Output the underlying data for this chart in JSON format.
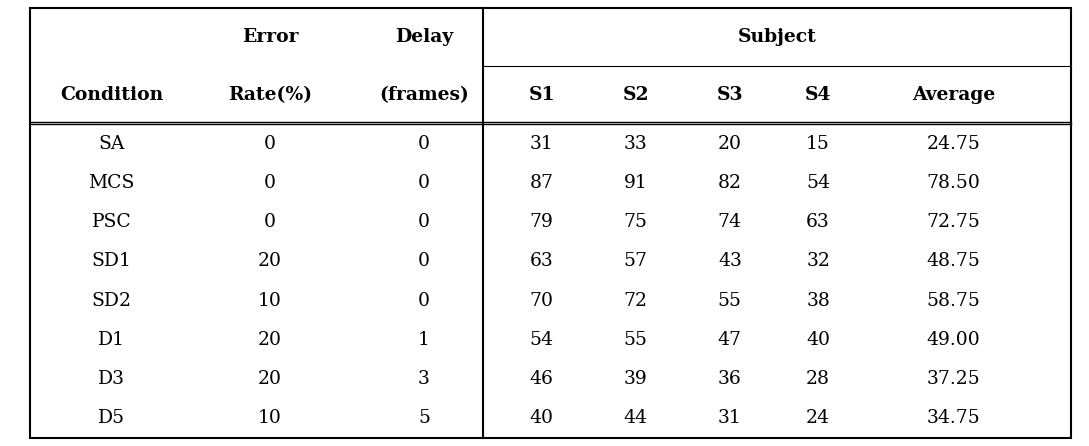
{
  "header_row1_texts": [
    "Error",
    "Delay",
    "Subject"
  ],
  "header_row2": [
    "Condition",
    "Rate(%)",
    "(frames)",
    "S1",
    "S2",
    "S3",
    "S4",
    "Average"
  ],
  "rows": [
    [
      "SA",
      "0",
      "0",
      "31",
      "33",
      "20",
      "15",
      "24.75"
    ],
    [
      "MCS",
      "0",
      "0",
      "87",
      "91",
      "82",
      "54",
      "78.50"
    ],
    [
      "PSC",
      "0",
      "0",
      "79",
      "75",
      "74",
      "63",
      "72.75"
    ],
    [
      "SD1",
      "20",
      "0",
      "63",
      "57",
      "43",
      "32",
      "48.75"
    ],
    [
      "SD2",
      "10",
      "0",
      "70",
      "72",
      "55",
      "38",
      "58.75"
    ],
    [
      "D1",
      "20",
      "1",
      "54",
      "55",
      "47",
      "40",
      "49.00"
    ],
    [
      "D3",
      "20",
      "3",
      "46",
      "39",
      "36",
      "28",
      "37.25"
    ],
    [
      "D5",
      "10",
      "5",
      "40",
      "44",
      "31",
      "24",
      "34.75"
    ]
  ],
  "bg_color": "#ffffff",
  "text_color": "#000000",
  "border_color": "#000000",
  "font_size": 13.5,
  "bold_font_size": 13.5,
  "figwidth": 10.89,
  "figheight": 4.46,
  "dpi": 100
}
